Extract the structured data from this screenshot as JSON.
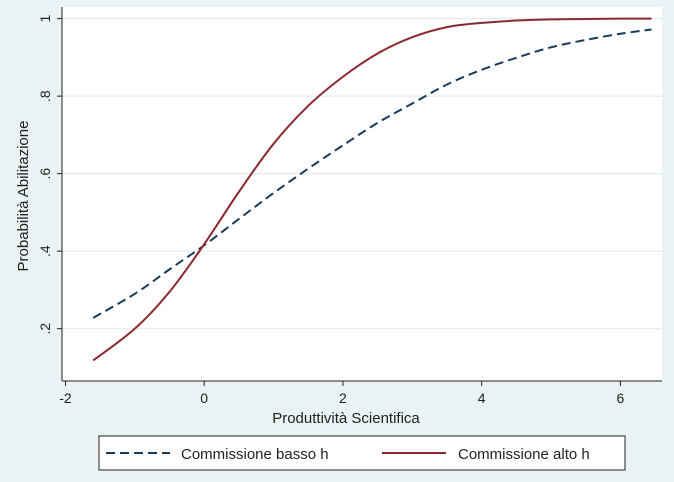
{
  "chart_data": {
    "type": "line",
    "xlabel": "Produttività Scientifica",
    "ylabel": "Probabilità Abilitazione",
    "xlim": [
      -2.05,
      6.6
    ],
    "ylim": [
      0.065,
      1.03
    ],
    "x_ticks": [
      -2,
      0,
      2,
      4,
      6
    ],
    "x_tick_labels": [
      "-2",
      "0",
      "2",
      "4",
      "6"
    ],
    "y_ticks": [
      0.2,
      0.4,
      0.6,
      0.8,
      1.0
    ],
    "y_tick_labels": [
      ".2",
      ".4",
      ".6",
      ".8",
      "1"
    ],
    "grid": true,
    "legend_position": "bottom",
    "series": [
      {
        "name": "Commissione basso h",
        "color": "#1a3a5c",
        "style": "dashed",
        "x": [
          -1.6,
          -1.0,
          -0.5,
          0.0,
          0.5,
          1.0,
          1.5,
          2.0,
          2.5,
          3.0,
          3.5,
          4.0,
          4.5,
          5.0,
          5.5,
          6.0,
          6.45
        ],
        "y": [
          0.228,
          0.29,
          0.353,
          0.415,
          0.483,
          0.55,
          0.613,
          0.673,
          0.731,
          0.781,
          0.83,
          0.868,
          0.899,
          0.926,
          0.945,
          0.961,
          0.972
        ]
      },
      {
        "name": "Commissione alto h",
        "color": "#8b2a2e",
        "style": "solid",
        "x": [
          -1.6,
          -1.0,
          -0.5,
          0.0,
          0.5,
          1.0,
          1.5,
          2.0,
          2.5,
          3.0,
          3.5,
          4.0,
          4.5,
          5.0,
          5.5,
          6.0,
          6.45
        ],
        "y": [
          0.118,
          0.2,
          0.295,
          0.418,
          0.553,
          0.677,
          0.775,
          0.85,
          0.91,
          0.952,
          0.978,
          0.989,
          0.995,
          0.998,
          0.999,
          1.0,
          1.0
        ]
      }
    ]
  }
}
